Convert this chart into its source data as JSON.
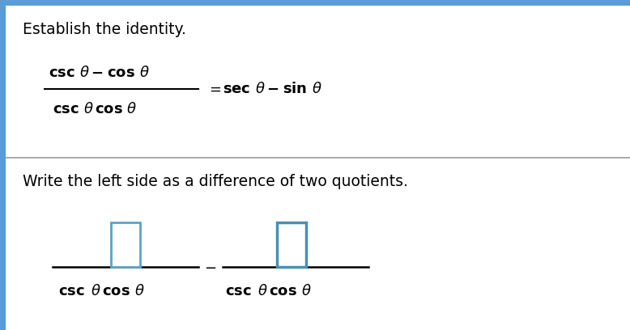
{
  "background_color": "#ffffff",
  "top_border_color": "#5b9bd5",
  "left_border_color": "#5b9bd5",
  "divider_color": "#999999",
  "title_text": "Establish the identity.",
  "title_fontsize": 13.5,
  "step_text": "Write the left side as a difference of two quotients.",
  "step_fontsize": 13.5,
  "math_fontsize": 13,
  "box1_color": "#5ba3c9",
  "box2_color": "#4a8fb5"
}
